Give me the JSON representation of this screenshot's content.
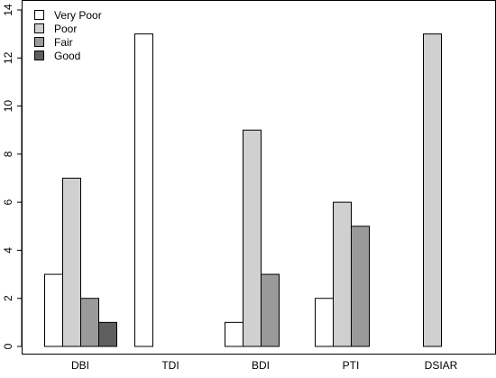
{
  "chart_data": {
    "type": "bar",
    "categories": [
      "DBI",
      "TDI",
      "BDI",
      "PTI",
      "DSIAR"
    ],
    "series": [
      {
        "name": "Very Poor",
        "values": [
          3,
          13,
          1,
          2,
          0
        ],
        "color": "#ffffff"
      },
      {
        "name": "Poor",
        "values": [
          7,
          0,
          9,
          6,
          13
        ],
        "color": "#d0d0d0"
      },
      {
        "name": "Fair",
        "values": [
          2,
          0,
          3,
          5,
          0
        ],
        "color": "#9a9a9a"
      },
      {
        "name": "Good",
        "values": [
          1,
          0,
          0,
          0,
          0
        ],
        "color": "#5f5f5f"
      }
    ],
    "y_ticks": [
      "0",
      "2",
      "4",
      "6",
      "8",
      "10",
      "12",
      "14"
    ],
    "ylim": [
      0,
      14
    ],
    "title": "",
    "xlabel": "",
    "ylabel": "",
    "grid": false,
    "legend_position": "top-left"
  }
}
